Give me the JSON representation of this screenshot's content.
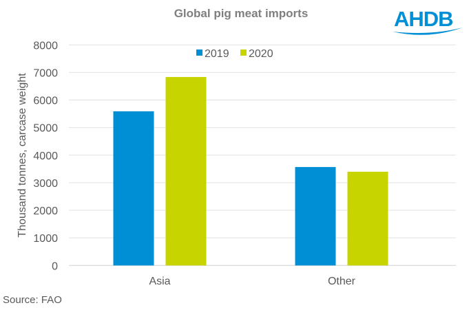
{
  "chart_data": {
    "type": "bar",
    "title": "Global pig meat imports",
    "ylabel": "Thousand tonnes, carcase weight",
    "xlabel": "",
    "categories": [
      "Asia",
      "Other"
    ],
    "series": [
      {
        "name": "2019",
        "values": [
          5590,
          3570
        ],
        "color": "#008fd5"
      },
      {
        "name": "2020",
        "values": [
          6835,
          3400
        ],
        "color": "#c8d400"
      }
    ],
    "ylim": [
      0,
      8000
    ],
    "yticks": [
      0,
      1000,
      2000,
      3000,
      4000,
      5000,
      6000,
      7000,
      8000
    ],
    "grid": true,
    "legend_position": "top-center"
  },
  "logo": {
    "text": "AHDB",
    "color": "#008fd5"
  },
  "source": "Source: FAO"
}
